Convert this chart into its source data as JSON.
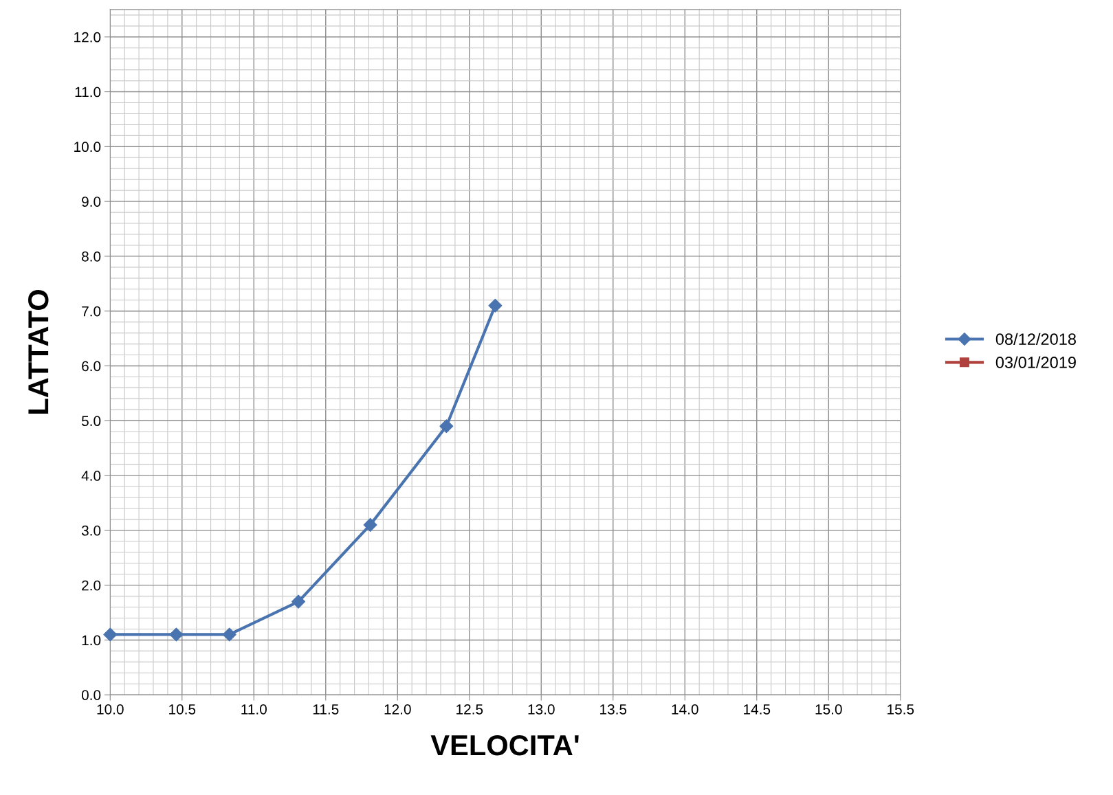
{
  "chart_data": {
    "type": "line",
    "xlabel": "VELOCITA'",
    "ylabel": "LATTATO",
    "x": [
      10.0,
      10.46,
      10.83,
      11.31,
      11.81,
      12.34,
      12.68
    ],
    "series": [
      {
        "name": "08/12/2018",
        "color": "#4a74b0",
        "marker": "diamond",
        "values": [
          1.1,
          1.1,
          1.1,
          1.7,
          3.1,
          4.9,
          7.1
        ]
      },
      {
        "name": "03/01/2019",
        "color": "#b0403c",
        "marker": "square",
        "values": [
          null,
          null,
          null,
          null,
          null,
          null,
          null
        ]
      }
    ],
    "xlim": [
      10.0,
      15.5
    ],
    "xticks": [
      {
        "value": 10.0,
        "label": "10.0"
      },
      {
        "value": 10.5,
        "label": "10.5"
      },
      {
        "value": 11.0,
        "label": "11.0"
      },
      {
        "value": 11.5,
        "label": "11.5"
      },
      {
        "value": 12.0,
        "label": "12.0"
      },
      {
        "value": 12.5,
        "label": "12.5"
      },
      {
        "value": 13.0,
        "label": "13.0"
      },
      {
        "value": 13.5,
        "label": "13.5"
      },
      {
        "value": 14.0,
        "label": "14.0"
      },
      {
        "value": 14.5,
        "label": "14.5"
      },
      {
        "value": 15.0,
        "label": "15.0"
      },
      {
        "value": 15.5,
        "label": "15.5"
      }
    ],
    "ylim": [
      0.0,
      12.5
    ],
    "yticks": [
      {
        "value": 0,
        "label": "0.0"
      },
      {
        "value": 1,
        "label": "1.0"
      },
      {
        "value": 2,
        "label": "2.0"
      },
      {
        "value": 3,
        "label": "3.0"
      },
      {
        "value": 4,
        "label": "4.0"
      },
      {
        "value": 5,
        "label": "5.0"
      },
      {
        "value": 6,
        "label": "6.0"
      },
      {
        "value": 7,
        "label": "7.0"
      },
      {
        "value": 8,
        "label": "8.0"
      },
      {
        "value": 9,
        "label": "9.0"
      },
      {
        "value": 10,
        "label": "10.0"
      },
      {
        "value": 11,
        "label": "11.0"
      },
      {
        "value": 12,
        "label": "12.0"
      }
    ],
    "grid": true,
    "legend": "right",
    "line_style": "solid"
  }
}
